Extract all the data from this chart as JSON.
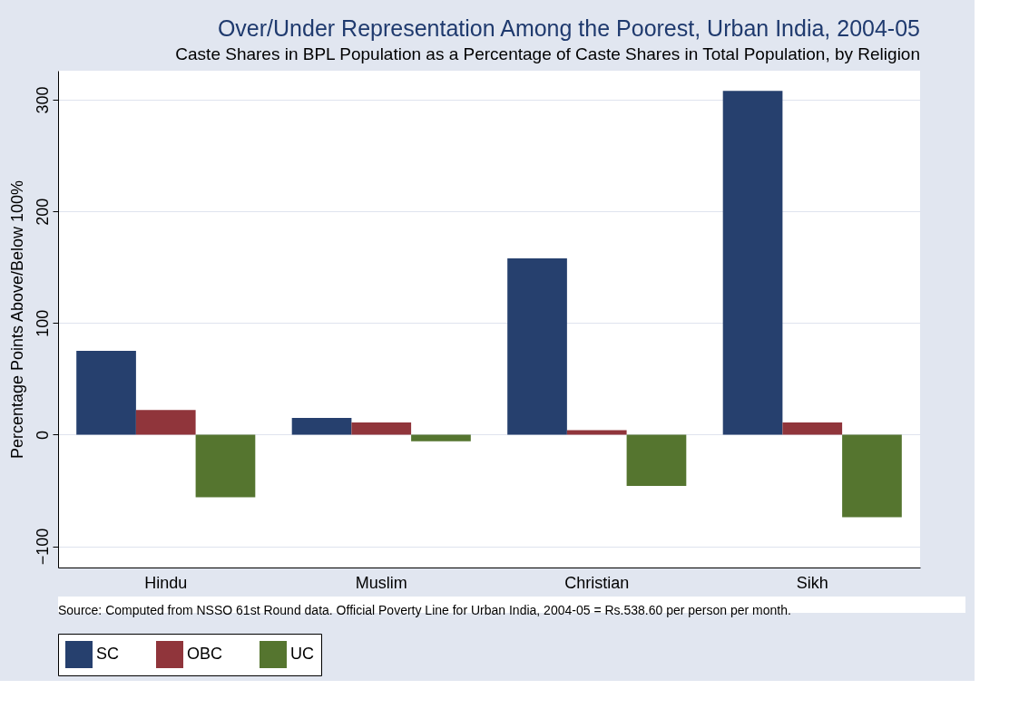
{
  "chart_data": {
    "type": "bar",
    "title": "Over/Under Representation Among the Poorest, Urban India, 2004-05",
    "subtitle": "Caste Shares in BPL Population as a Percentage of Caste Shares in Total Population, by Religion",
    "ylabel": "Percentage Points Above/Below 100%",
    "categories": [
      "Hindu",
      "Muslim",
      "Christian",
      "Sikh"
    ],
    "series": [
      {
        "name": "SC",
        "color": "#26406e",
        "values": [
          75,
          15,
          158,
          308
        ]
      },
      {
        "name": "OBC",
        "color": "#90353b",
        "values": [
          22,
          11,
          4,
          11
        ]
      },
      {
        "name": "UC",
        "color": "#55752f",
        "values": [
          -56,
          -6,
          -46,
          -74
        ]
      }
    ],
    "ylim": [
      -119,
      326
    ],
    "yticks": [
      -100,
      0,
      100,
      200,
      300
    ],
    "grid": "y",
    "legend": "bottom",
    "annotations": [
      "Source: Computed from NSSO 61st Round data.  Official Poverty Line for Urban India, 2004-05 = Rs.538.60 per person per month."
    ]
  }
}
